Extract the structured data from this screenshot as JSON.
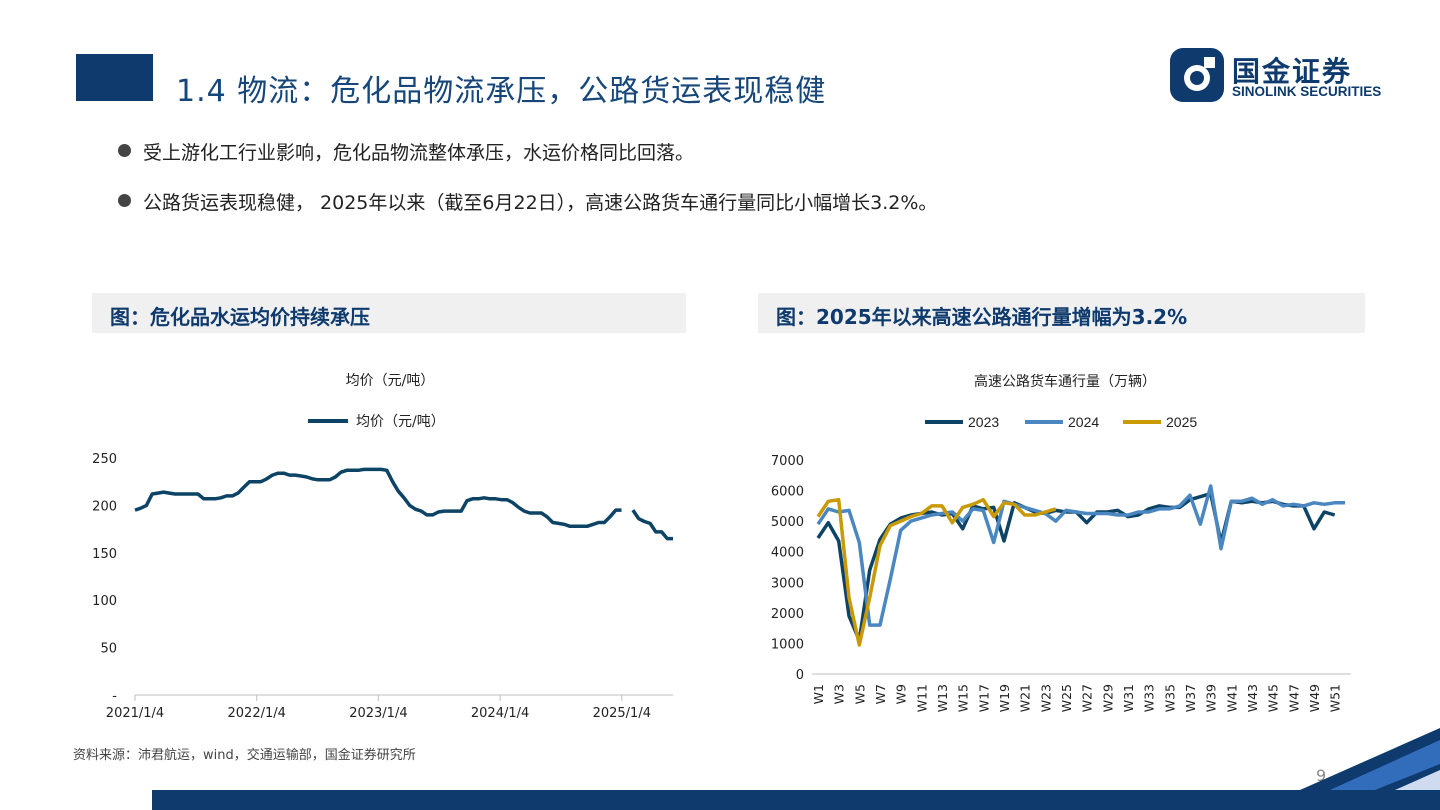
{
  "header": {
    "title": "1.4 物流：危化品物流承压，公路货运表现稳健",
    "logo_cn": "国金证券",
    "logo_en": "SINOLINK SECURITIES"
  },
  "bullets": [
    "受上游化工行业影响，危化品物流整体承压，水运价格同比回落。",
    "公路货运表现稳健， 2025年以来（截至6月22日），高速公路货车通行量同比小幅增长3.2%。"
  ],
  "panels": {
    "left_heading": "图：危化品水运均价持续承压",
    "right_heading": "图：2025年以来高速公路通行量增幅为3.2%"
  },
  "source": "资料来源：沛君航运，wind，交通运输部，国金证券研究所",
  "page_number": "9",
  "colors": {
    "brand": "#0e3a6e",
    "s2023": "#0d4466",
    "s2024": "#4a86c0",
    "s2025": "#c99a06"
  },
  "chart_data": [
    {
      "type": "line",
      "title": "均价（元/吨）",
      "ylim": [
        0,
        250
      ],
      "yticks": [
        "-",
        "50",
        "100",
        "150",
        "200",
        "250"
      ],
      "xtick_labels": [
        "2021/1/4",
        "2022/1/4",
        "2023/1/4",
        "2024/1/4",
        "2025/1/4"
      ],
      "series": [
        {
          "name": "均价（元/吨）",
          "values": [
            195,
            197,
            200,
            212,
            213,
            214,
            213,
            212,
            212,
            212,
            212,
            212,
            207,
            207,
            207,
            208,
            210,
            210,
            213,
            219,
            225,
            225,
            225,
            228,
            232,
            234,
            234,
            232,
            232,
            231,
            230,
            228,
            227,
            227,
            227,
            230,
            235,
            237,
            237,
            237,
            238,
            238,
            238,
            238,
            237,
            225,
            215,
            208,
            200,
            196,
            194,
            190,
            190,
            193,
            194,
            194,
            194,
            194,
            205,
            207,
            207,
            208,
            207,
            207,
            206,
            206,
            203,
            198,
            194,
            192,
            192,
            192,
            188,
            182,
            181,
            180,
            178,
            178,
            178,
            178,
            180,
            182,
            182,
            188,
            195,
            195,
            null,
            195,
            186,
            183,
            181,
            172,
            172,
            165,
            165
          ]
        }
      ]
    },
    {
      "type": "line",
      "title": "高速公路货车通行量（万辆）",
      "ylim": [
        0,
        7000
      ],
      "yticks": [
        "0",
        "1000",
        "2000",
        "3000",
        "4000",
        "5000",
        "6000",
        "7000"
      ],
      "categories": [
        "W1",
        "W2",
        "W3",
        "W4",
        "W5",
        "W6",
        "W7",
        "W8",
        "W9",
        "W10",
        "W11",
        "W12",
        "W13",
        "W14",
        "W15",
        "W16",
        "W17",
        "W18",
        "W19",
        "W20",
        "W21",
        "W22",
        "W23",
        "W24",
        "W25",
        "W26",
        "W27",
        "W28",
        "W29",
        "W30",
        "W31",
        "W32",
        "W33",
        "W34",
        "W35",
        "W36",
        "W37",
        "W38",
        "W39",
        "W40",
        "W41",
        "W42",
        "W43",
        "W44",
        "W45",
        "W46",
        "W47",
        "W48",
        "W49",
        "W50",
        "W51",
        "W52"
      ],
      "series": [
        {
          "name": "2023",
          "values": [
            4450,
            4950,
            4350,
            1900,
            1100,
            3400,
            4400,
            4900,
            5100,
            5200,
            5250,
            5300,
            5200,
            5250,
            4750,
            5500,
            5400,
            5450,
            4350,
            5600,
            5450,
            5300,
            5250,
            5350,
            5300,
            5300,
            4950,
            5300,
            5300,
            5350,
            5150,
            5200,
            5400,
            5500,
            5450,
            5450,
            5700,
            5800,
            5900,
            4300,
            5650,
            5600,
            5650,
            5600,
            5650,
            5550,
            5500,
            5500,
            4750,
            5300,
            5200,
            null
          ]
        },
        {
          "name": "2024",
          "values": [
            4900,
            5400,
            5300,
            5350,
            4300,
            1600,
            1600,
            3100,
            4700,
            5000,
            5100,
            5200,
            5250,
            5300,
            5000,
            5400,
            5350,
            4300,
            5650,
            5550,
            5450,
            5350,
            5250,
            5000,
            5350,
            5300,
            5250,
            5250,
            5250,
            5200,
            5200,
            5300,
            5300,
            5400,
            5400,
            5500,
            5850,
            4900,
            6150,
            4100,
            5650,
            5650,
            5750,
            5550,
            5700,
            5500,
            5550,
            5500,
            5600,
            5550,
            5600,
            5600
          ]
        },
        {
          "name": "2025",
          "values": [
            5150,
            5650,
            5700,
            2500,
            950,
            2500,
            4200,
            4850,
            5000,
            5150,
            5250,
            5500,
            5500,
            4950,
            5450,
            5550,
            5700,
            5150,
            5600,
            5550,
            5200,
            5200,
            5300,
            5400,
            null,
            null,
            null,
            null,
            null,
            null,
            null,
            null,
            null,
            null,
            null,
            null,
            null,
            null,
            null,
            null,
            null,
            null,
            null,
            null,
            null,
            null,
            null,
            null,
            null,
            null,
            null,
            null
          ]
        }
      ]
    }
  ]
}
